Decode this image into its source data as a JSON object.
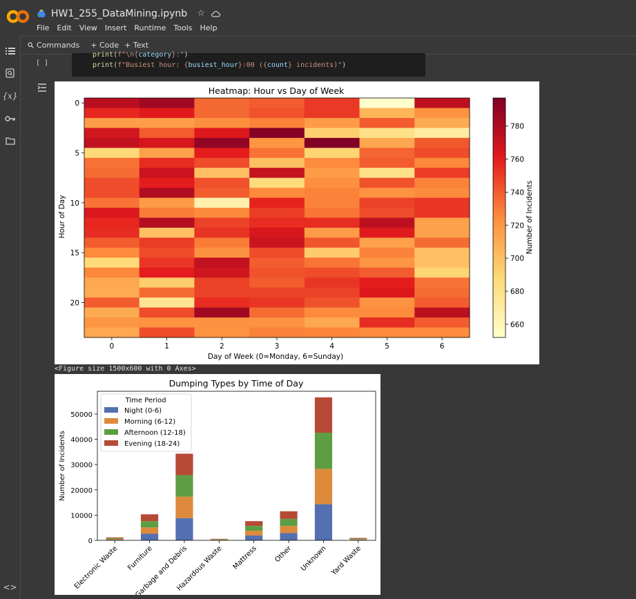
{
  "app": {
    "notebook_title": "HW1_255_DataMining.ipynb",
    "menu": [
      "File",
      "Edit",
      "View",
      "Insert",
      "Runtime",
      "Tools",
      "Help"
    ],
    "toolbar": {
      "commands": "Commands",
      "add_code": "+ Code",
      "add_text": "+ Text"
    },
    "sidebar_icons": [
      "table-of-contents-icon",
      "find-replace-icon",
      "variables-icon",
      "secrets-key-icon",
      "files-folder-icon",
      "code-snippets-icon"
    ]
  },
  "cell": {
    "run_indicator": "[ ]",
    "code_lines": [
      [
        {
          "t": "print",
          "c": "#dcdcaa"
        },
        {
          "t": "(",
          "c": "#d4d4d4"
        },
        {
          "t": "f\"\\n{",
          "c": "#ce9178"
        },
        {
          "t": "category",
          "c": "#9cdcfe"
        },
        {
          "t": "}:\"",
          "c": "#ce9178"
        },
        {
          "t": ")",
          "c": "#d4d4d4"
        }
      ],
      [
        {
          "t": "print",
          "c": "#dcdcaa"
        },
        {
          "t": "(",
          "c": "#d4d4d4"
        },
        {
          "t": "f\"Busiest hour: {",
          "c": "#ce9178"
        },
        {
          "t": "busiest_hour",
          "c": "#9cdcfe"
        },
        {
          "t": "}:00 ({",
          "c": "#ce9178"
        },
        {
          "t": "count",
          "c": "#9cdcfe"
        },
        {
          "t": "} incidents)\"",
          "c": "#ce9178"
        },
        {
          "t": ")",
          "c": "#d4d4d4"
        }
      ]
    ],
    "figure_text": "<Figure size 1500x600 with 0 Axes>"
  },
  "chart_data": [
    {
      "type": "heatmap",
      "title": "Heatmap: Hour vs Day of Week",
      "xlabel": "Day of Week (0=Monday, 6=Sunday)",
      "ylabel": "Hour of Day",
      "x": [
        0,
        1,
        2,
        3,
        4,
        5,
        6
      ],
      "y": [
        0,
        1,
        2,
        3,
        4,
        5,
        6,
        7,
        8,
        9,
        10,
        11,
        12,
        13,
        14,
        15,
        16,
        17,
        18,
        19,
        20,
        21,
        22,
        23
      ],
      "xticks": [
        0,
        1,
        2,
        3,
        4,
        5,
        6
      ],
      "yticks": [
        0,
        5,
        10,
        15,
        20
      ],
      "colorbar_label": "Number of Incidents",
      "colorbar_ticks": [
        660,
        680,
        700,
        720,
        740,
        760,
        780
      ],
      "zlim": [
        652,
        797
      ],
      "colormap": [
        "#ffffcc",
        "#fed976",
        "#fd8d3c",
        "#e31a1c",
        "#800026"
      ],
      "values": [
        [
          776,
          785,
          736,
          740,
          751,
          652,
          774
        ],
        [
          757,
          762,
          736,
          743,
          751,
          705,
          722
        ],
        [
          717,
          717,
          723,
          728,
          718,
          740,
          710
        ],
        [
          767,
          740,
          763,
          795,
          693,
          680,
          670
        ],
        [
          773,
          765,
          790,
          720,
          797,
          712,
          741
        ],
        [
          688,
          715,
          760,
          733,
          690,
          737,
          745
        ],
        [
          733,
          755,
          745,
          700,
          725,
          740,
          726
        ],
        [
          735,
          770,
          700,
          772,
          718,
          680,
          750
        ],
        [
          745,
          760,
          743,
          685,
          723,
          743,
          728
        ],
        [
          745,
          779,
          740,
          725,
          728,
          722,
          725
        ],
        [
          733,
          718,
          665,
          758,
          728,
          748,
          752
        ],
        [
          764,
          730,
          725,
          750,
          732,
          745,
          752
        ],
        [
          757,
          778,
          748,
          755,
          755,
          775,
          715
        ],
        [
          755,
          700,
          753,
          765,
          718,
          762,
          715
        ],
        [
          740,
          750,
          730,
          769,
          742,
          715,
          735
        ],
        [
          725,
          745,
          722,
          745,
          695,
          728,
          700
        ],
        [
          687,
          752,
          773,
          740,
          732,
          720,
          700
        ],
        [
          726,
          760,
          768,
          743,
          745,
          740,
          690
        ],
        [
          712,
          694,
          748,
          740,
          752,
          760,
          733
        ],
        [
          710,
          735,
          748,
          748,
          748,
          763,
          735
        ],
        [
          740,
          677,
          755,
          752,
          743,
          722,
          740
        ],
        [
          710,
          745,
          785,
          735,
          725,
          725,
          775
        ],
        [
          720,
          722,
          722,
          722,
          712,
          755,
          740
        ],
        [
          712,
          745,
          722,
          728,
          727,
          725,
          725
        ]
      ]
    },
    {
      "type": "bar",
      "stacked": true,
      "title": "Dumping Types by Time of Day",
      "xlabel": "",
      "ylabel": "Number of Incidents",
      "ylim": [
        0,
        59000
      ],
      "yticks": [
        0,
        10000,
        20000,
        30000,
        40000,
        50000
      ],
      "legend_title": "Time Period",
      "legend_position": "top-left",
      "categories": [
        "Electronic Waste",
        "Furniture",
        "Garbage and Debris",
        "Hazardous Waste",
        "Mattress",
        "Other",
        "Unknown",
        "Yard Waste"
      ],
      "series": [
        {
          "name": "Night (0-6)",
          "color": "#5470b0",
          "values": [
            250,
            2600,
            8800,
            150,
            1900,
            2900,
            14300,
            200
          ]
        },
        {
          "name": "Morning (6-12)",
          "color": "#dd8a3c",
          "values": [
            300,
            2500,
            8500,
            150,
            1900,
            2800,
            14000,
            250
          ]
        },
        {
          "name": "Afternoon (12-18)",
          "color": "#5d9e44",
          "values": [
            300,
            2500,
            8500,
            150,
            1900,
            2800,
            14300,
            250
          ]
        },
        {
          "name": "Evening (18-24)",
          "color": "#b64a37",
          "values": [
            300,
            2700,
            8500,
            150,
            1900,
            3000,
            14000,
            250
          ]
        }
      ]
    }
  ]
}
